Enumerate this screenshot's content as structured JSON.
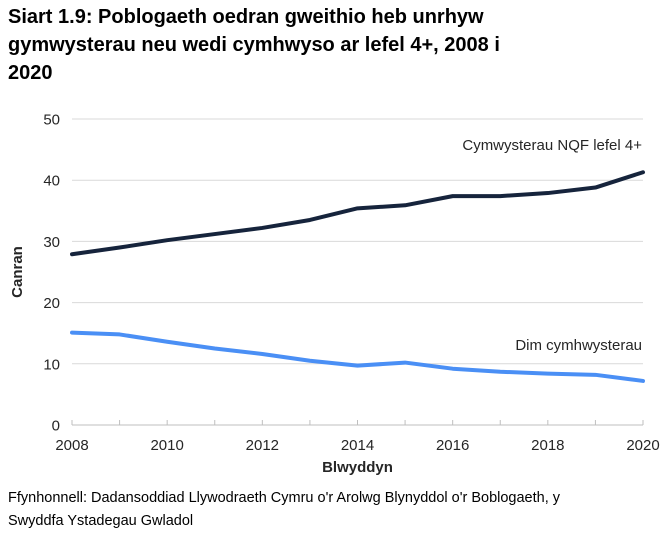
{
  "chart_data": {
    "type": "line",
    "title": "Siart 1.9: Poblogaeth oedran gweithio heb unrhyw gymwysterau neu wedi cymhwyso ar lefel 4+, 2008 i 2020",
    "xlabel": "Blwyddyn",
    "ylabel": "Canran",
    "ylim": [
      0,
      50
    ],
    "ytick_step": 10,
    "grid": "horizontal",
    "legend_position": "inline-right",
    "x": [
      2008,
      2009,
      2010,
      2011,
      2012,
      2013,
      2014,
      2015,
      2016,
      2017,
      2018,
      2019,
      2020
    ],
    "xtick_labels": [
      2008,
      2010,
      2012,
      2014,
      2016,
      2018,
      2020
    ],
    "series": [
      {
        "name": "Cymwysterau NQF lefel 4+",
        "color": "#16243c",
        "values": [
          27.9,
          29.0,
          30.2,
          31.2,
          32.2,
          33.5,
          35.4,
          35.9,
          37.4,
          37.4,
          37.9,
          38.8,
          41.3
        ]
      },
      {
        "name": "Dim cymhwysterau",
        "color": "#4a8ff5",
        "values": [
          15.1,
          14.8,
          13.6,
          12.5,
          11.6,
          10.5,
          9.7,
          10.2,
          9.2,
          8.7,
          8.4,
          8.2,
          7.2
        ]
      }
    ]
  },
  "source": "Ffynhonnell: Dadansoddiad Llywodraeth Cymru o'r Arolwg Blynyddol o'r Boblogaeth, y Swyddfa Ystadegau Gwladol",
  "colors": {
    "gridline": "#d9d9d9",
    "axis": "#bfbfbf",
    "text": "#262626"
  }
}
